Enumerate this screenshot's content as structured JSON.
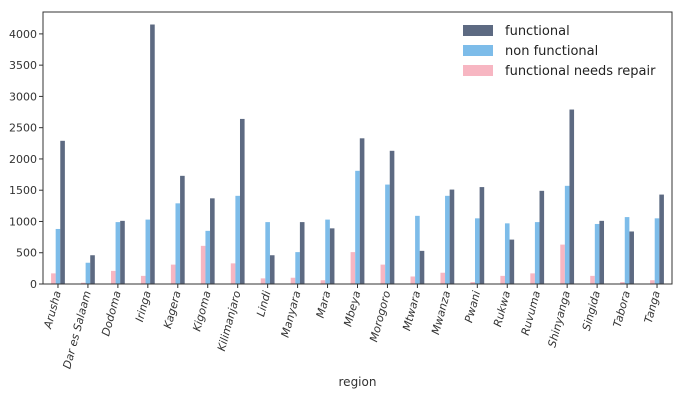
{
  "chart_data": {
    "type": "bar",
    "xlabel": "region",
    "ylabel": "",
    "ylim": [
      0,
      4350
    ],
    "yticks": [
      0,
      500,
      1000,
      1500,
      2000,
      2500,
      3000,
      3500,
      4000
    ],
    "grid": false,
    "legend_position": "top-right",
    "categories": [
      "Arusha",
      "Dar es Salaam",
      "Dodoma",
      "Iringa",
      "Kagera",
      "Kigoma",
      "Kilimanjaro",
      "Lindi",
      "Manyara",
      "Mara",
      "Mbeya",
      "Morogoro",
      "Mtwara",
      "Mwanza",
      "Pwani",
      "Rukwa",
      "Ruvuma",
      "Shinyanga",
      "Singida",
      "Tabora",
      "Tanga"
    ],
    "series": [
      {
        "name": "functional",
        "color": "#5d6a82",
        "values": [
          2290,
          460,
          1010,
          4150,
          1730,
          1370,
          2640,
          460,
          990,
          890,
          2330,
          2130,
          530,
          1510,
          1550,
          710,
          1490,
          2790,
          1010,
          840,
          1430
        ]
      },
      {
        "name": "non functional",
        "color": "#7dbce9",
        "values": [
          880,
          340,
          990,
          1030,
          1290,
          850,
          1410,
          990,
          510,
          1030,
          1810,
          1590,
          1090,
          1410,
          1050,
          970,
          990,
          1570,
          960,
          1070,
          1050
        ]
      },
      {
        "name": "functional needs repair",
        "color": "#f7b6c2",
        "values": [
          170,
          20,
          210,
          130,
          310,
          610,
          330,
          90,
          100,
          60,
          510,
          310,
          120,
          180,
          30,
          130,
          170,
          630,
          130,
          30,
          60
        ]
      }
    ]
  }
}
